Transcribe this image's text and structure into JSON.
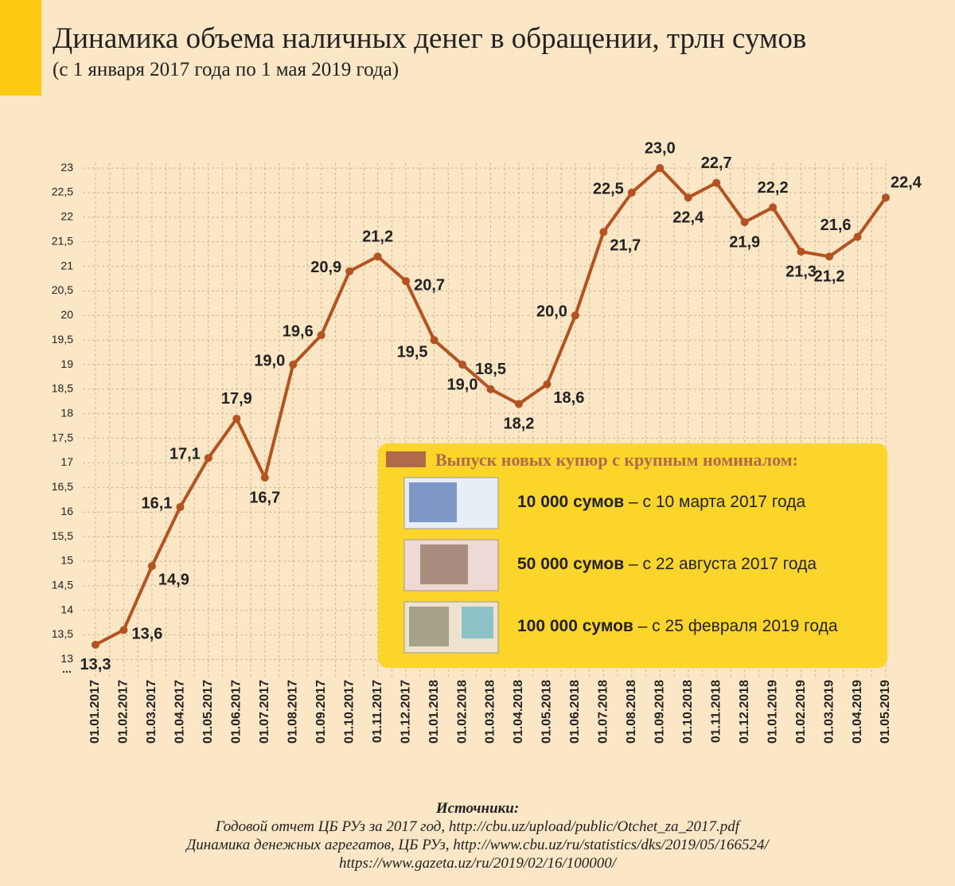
{
  "chart_data": {
    "type": "line",
    "title": "Динамика объема наличных денег в обращении, трлн сумов",
    "subtitle": "(с 1 января 2017 года по 1 мая 2019 года)",
    "categories": [
      "01.01.2017",
      "01.02.2017",
      "01.03.2017",
      "01.04.2017",
      "01.05.2017",
      "01.06.2017",
      "01.07.2017",
      "01.08.2017",
      "01.09.2017",
      "01.10.2017",
      "01.11.2017",
      "01.12.2017",
      "01.01.2018",
      "01.02.2018",
      "01.03.2018",
      "01.04.2018",
      "01.05.2018",
      "01.06.2018",
      "01.07.2018",
      "01.08.2018",
      "01.09.2018",
      "01.10.2018",
      "01.11.2018",
      "01.12.2018",
      "01.01.2019",
      "01.02.2019",
      "01.03.2019",
      "01.04.2019",
      "01.05.2019"
    ],
    "values": [
      13.3,
      13.6,
      14.9,
      16.1,
      17.1,
      17.9,
      16.7,
      19.0,
      19.6,
      20.9,
      21.2,
      20.7,
      19.5,
      19.0,
      18.5,
      18.2,
      18.6,
      20.0,
      21.7,
      22.5,
      23.0,
      22.4,
      22.7,
      21.9,
      22.2,
      21.3,
      21.2,
      21.6,
      22.4
    ],
    "value_labels": [
      "13,3",
      "13,6",
      "14,9",
      "16,1",
      "17,1",
      "17,9",
      "16,7",
      "19,0",
      "19,6",
      "20,9",
      "21,2",
      "20,7",
      "19,5",
      "19,0",
      "18,5",
      "18,2",
      "18,6",
      "20,0",
      "21,7",
      "22,5",
      "23,0",
      "22,4",
      "22,7",
      "21,9",
      "22,2",
      "21,3",
      "21,2",
      "21,6",
      "22,4"
    ],
    "color": "#b5521f",
    "ylim": [
      12.65,
      23.1
    ],
    "yticks": [
      13,
      {
        "value": 13.5,
        "label": "13,5"
      },
      14,
      {
        "value": 14.5,
        "label": "14,5"
      },
      15,
      {
        "value": 15.5,
        "label": "15,5"
      },
      16,
      {
        "value": 16.5,
        "label": "16,5"
      },
      17,
      {
        "value": 17.5,
        "label": "17,5"
      },
      18,
      {
        "value": 18.5,
        "label": "18,5"
      },
      19,
      {
        "value": 19.5,
        "label": "19,5"
      },
      20,
      {
        "value": 20.5,
        "label": "20,5"
      },
      21,
      {
        "value": 21.5,
        "label": "21,5"
      },
      22,
      {
        "value": 22.5,
        "label": "22,5"
      },
      23
    ],
    "axis_break": "...",
    "grid": true,
    "legend_box": {
      "title": "Выпуск новых купюр с крупным номиналом:",
      "items": [
        {
          "bold": "10 000 сумов",
          "text": " – с 10 марта 2017 года"
        },
        {
          "bold": "50 000 сумов",
          "text": " – с 22 августа 2017 года"
        },
        {
          "bold": "100 000 сумов",
          "text": " – с 25 февраля 2019 года"
        }
      ]
    },
    "sources": {
      "title": "Источники:",
      "lines": [
        "Годовой отчет ЦБ РУз за 2017 год, http://cbu.uz/upload/public/Otchet_za_2017.pdf",
        "Динамика денежных агрегатов, ЦБ РУз, http://www.cbu.uz/ru/statistics/dks/2019/05/166524/",
        "https://www.gazeta.uz/ru/2019/02/16/100000/"
      ]
    }
  }
}
